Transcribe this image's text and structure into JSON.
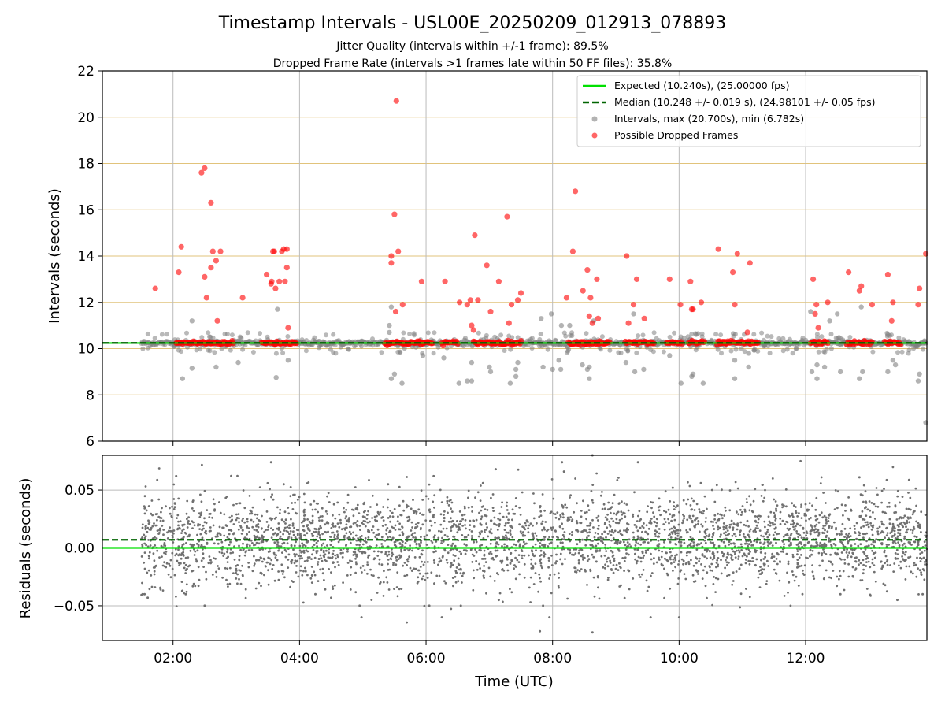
{
  "chart_data": {
    "type": "scatter",
    "title": "Timestamp Intervals - USL00E_20250209_012913_078893",
    "subtitle_lines": [
      "Jitter Quality (intervals within +/-1 frame): 89.5%",
      "Dropped Frame Rate (intervals >1 frames late within 50 FF files): 35.8%"
    ],
    "xlabel": "Time (UTC)",
    "x_unit": "hours UTC",
    "xlim": [
      0.883,
      13.917
    ],
    "xticks": [
      {
        "value": 2,
        "label": "02:00"
      },
      {
        "value": 4,
        "label": "04:00"
      },
      {
        "value": 6,
        "label": "06:00"
      },
      {
        "value": 8,
        "label": "08:00"
      },
      {
        "value": 10,
        "label": "10:00"
      },
      {
        "value": 12,
        "label": "12:00"
      }
    ],
    "top_panel": {
      "ylabel": "Intervals (seconds)",
      "ylim": [
        6,
        22
      ],
      "yticks": [
        6,
        8,
        10,
        12,
        14,
        16,
        18,
        20,
        22
      ],
      "expected_value": 10.24,
      "median_value": 10.248,
      "x_start": 1.5,
      "legend": {
        "placement": "top-right",
        "entries": [
          {
            "label": "Expected (10.240s), (25.00000 fps)",
            "color": "#00e000",
            "style": "solid"
          },
          {
            "label": "Median (10.248 +/- 0.019 s), (24.98101 +/- 0.05 fps)",
            "color": "#006400",
            "style": "dashed"
          },
          {
            "label": "Intervals, max (20.700s), min (6.782s)",
            "color": "#808080",
            "style": "marker"
          },
          {
            "label": "Possible Dropped Frames",
            "color": "#ff0000",
            "style": "marker"
          }
        ]
      },
      "dropped_frames": [
        [
          1.72,
          12.6
        ],
        [
          2.09,
          13.3
        ],
        [
          2.13,
          14.4
        ],
        [
          2.45,
          17.6
        ],
        [
          2.5,
          17.8
        ],
        [
          2.5,
          13.1
        ],
        [
          2.53,
          12.2
        ],
        [
          2.6,
          13.5
        ],
        [
          2.6,
          16.3
        ],
        [
          2.63,
          14.2
        ],
        [
          2.68,
          13.8
        ],
        [
          2.7,
          11.2
        ],
        [
          2.75,
          14.2
        ],
        [
          3.1,
          12.2
        ],
        [
          3.48,
          13.2
        ],
        [
          3.55,
          12.8
        ],
        [
          3.56,
          12.9
        ],
        [
          3.58,
          14.2
        ],
        [
          3.6,
          14.2
        ],
        [
          3.62,
          12.6
        ],
        [
          3.68,
          12.9
        ],
        [
          3.72,
          14.2
        ],
        [
          3.75,
          14.3
        ],
        [
          3.77,
          12.9
        ],
        [
          3.8,
          13.5
        ],
        [
          3.8,
          14.3
        ],
        [
          3.82,
          10.9
        ],
        [
          5.45,
          14
        ],
        [
          5.45,
          13.7
        ],
        [
          5.5,
          15.8
        ],
        [
          5.52,
          11.6
        ],
        [
          5.53,
          20.7
        ],
        [
          5.56,
          14.2
        ],
        [
          5.63,
          11.9
        ],
        [
          5.93,
          12.9
        ],
        [
          6.3,
          12.9
        ],
        [
          6.53,
          12
        ],
        [
          6.65,
          11.9
        ],
        [
          6.7,
          12.1
        ],
        [
          6.72,
          11
        ],
        [
          6.75,
          10.8
        ],
        [
          6.77,
          14.9
        ],
        [
          6.82,
          12.1
        ],
        [
          6.96,
          13.6
        ],
        [
          7.02,
          11.6
        ],
        [
          7.15,
          12.9
        ],
        [
          7.28,
          15.7
        ],
        [
          7.31,
          11.1
        ],
        [
          7.35,
          11.9
        ],
        [
          7.45,
          12.1
        ],
        [
          7.5,
          12.4
        ],
        [
          8.22,
          12.2
        ],
        [
          8.32,
          14.2
        ],
        [
          8.36,
          16.8
        ],
        [
          8.48,
          12.5
        ],
        [
          8.55,
          13.4
        ],
        [
          8.58,
          11.4
        ],
        [
          8.6,
          12.2
        ],
        [
          8.63,
          11.1
        ],
        [
          8.7,
          13
        ],
        [
          8.72,
          11.3
        ],
        [
          9.17,
          14
        ],
        [
          9.2,
          11.1
        ],
        [
          9.28,
          11.9
        ],
        [
          9.33,
          13
        ],
        [
          9.45,
          11.3
        ],
        [
          9.85,
          13
        ],
        [
          10.02,
          11.9
        ],
        [
          10.18,
          12.9
        ],
        [
          10.2,
          11.7
        ],
        [
          10.22,
          11.7
        ],
        [
          10.35,
          12
        ],
        [
          10.62,
          14.3
        ],
        [
          10.85,
          13.3
        ],
        [
          10.88,
          11.9
        ],
        [
          10.92,
          14.1
        ],
        [
          11.08,
          10.7
        ],
        [
          11.12,
          13.7
        ],
        [
          12.12,
          13
        ],
        [
          12.15,
          11.5
        ],
        [
          12.17,
          11.9
        ],
        [
          12.2,
          10.9
        ],
        [
          12.35,
          12
        ],
        [
          12.68,
          13.3
        ],
        [
          12.85,
          12.5
        ],
        [
          12.88,
          12.7
        ],
        [
          13.05,
          11.9
        ],
        [
          13.3,
          13.2
        ],
        [
          13.36,
          11.2
        ],
        [
          13.38,
          12
        ],
        [
          13.78,
          11.9
        ],
        [
          13.8,
          12.6
        ],
        [
          13.9,
          14.1
        ]
      ],
      "gray_outliers": [
        [
          2.15,
          8.7
        ],
        [
          2.3,
          9.15
        ],
        [
          2.3,
          11.2
        ],
        [
          2.68,
          9.2
        ],
        [
          3.03,
          9.4
        ],
        [
          3.06,
          10.5
        ],
        [
          3.63,
          8.75
        ],
        [
          3.65,
          11.7
        ],
        [
          3.82,
          9.5
        ],
        [
          5.42,
          11
        ],
        [
          5.42,
          10.7
        ],
        [
          5.45,
          11.8
        ],
        [
          5.45,
          8.7
        ],
        [
          5.5,
          8.9
        ],
        [
          5.62,
          8.5
        ],
        [
          5.95,
          9.7
        ],
        [
          6.28,
          9.6
        ],
        [
          6.52,
          8.5
        ],
        [
          6.65,
          8.6
        ],
        [
          6.72,
          8.6
        ],
        [
          6.72,
          9.4
        ],
        [
          7.0,
          9.2
        ],
        [
          7.02,
          9
        ],
        [
          7.33,
          8.5
        ],
        [
          7.42,
          8.8
        ],
        [
          7.42,
          9.1
        ],
        [
          7.45,
          9.4
        ],
        [
          7.82,
          11.3
        ],
        [
          7.85,
          9.2
        ],
        [
          7.98,
          11.5
        ],
        [
          8.0,
          9.1
        ],
        [
          8.1,
          9.5
        ],
        [
          8.13,
          9.1
        ],
        [
          8.14,
          11
        ],
        [
          8.27,
          11
        ],
        [
          8.47,
          9.3
        ],
        [
          8.55,
          9.1
        ],
        [
          8.58,
          8.7
        ],
        [
          8.58,
          9.2
        ],
        [
          8.65,
          11.2
        ],
        [
          9.16,
          9.4
        ],
        [
          9.28,
          11.5
        ],
        [
          9.3,
          9
        ],
        [
          9.44,
          9.1
        ],
        [
          9.85,
          9.7
        ],
        [
          10.03,
          8.5
        ],
        [
          10.2,
          8.8
        ],
        [
          10.22,
          8.9
        ],
        [
          10.38,
          8.5
        ],
        [
          10.88,
          8.7
        ],
        [
          10.88,
          9.5
        ],
        [
          11.1,
          9.2
        ],
        [
          11.1,
          9.8
        ],
        [
          12.08,
          11.6
        ],
        [
          12.1,
          9
        ],
        [
          12.18,
          8.7
        ],
        [
          12.18,
          9.3
        ],
        [
          12.3,
          9.2
        ],
        [
          12.38,
          11.2
        ],
        [
          12.5,
          11.5
        ],
        [
          12.55,
          9
        ],
        [
          12.85,
          8.7
        ],
        [
          12.88,
          11.8
        ],
        [
          12.9,
          9
        ],
        [
          13.3,
          9
        ],
        [
          13.3,
          10.6
        ],
        [
          13.38,
          9.5
        ],
        [
          13.42,
          9.3
        ],
        [
          13.78,
          8.6
        ],
        [
          13.8,
          8.9
        ],
        [
          13.9,
          6.8
        ]
      ],
      "dropped_bands": [
        [
          2.05,
          2.95
        ],
        [
          3.4,
          3.95
        ],
        [
          5.35,
          5.95
        ],
        [
          5.9,
          6.1
        ],
        [
          6.25,
          6.5
        ],
        [
          6.75,
          7.5
        ],
        [
          8.25,
          8.9
        ],
        [
          9.15,
          9.6
        ],
        [
          9.8,
          10.05
        ],
        [
          10.15,
          10.4
        ],
        [
          10.6,
          11.25
        ],
        [
          12.08,
          12.35
        ],
        [
          12.65,
          13.05
        ],
        [
          13.25,
          13.5
        ]
      ],
      "red_band_value": 10.25
    },
    "bottom_panel": {
      "ylabel": "Residuals (seconds)",
      "ylim": [
        -0.08,
        0.08
      ],
      "yticks": [
        {
          "value": 0.05,
          "label": "0.05"
        },
        {
          "value": 0.0,
          "label": "0.00"
        },
        {
          "value": -0.05,
          "label": "−0.05"
        }
      ],
      "expected_value": 0.0,
      "median_value": 0.007,
      "residual_sd": 0.019,
      "x_range": [
        1.5,
        13.917
      ],
      "n_points": 3600,
      "outliers": [
        [
          1.52,
          -0.04
        ],
        [
          1.55,
          -0.04
        ],
        [
          1.6,
          -0.043
        ],
        [
          1.8,
          -0.035
        ],
        [
          2.05,
          0.062
        ],
        [
          2.2,
          -0.04
        ],
        [
          2.5,
          -0.05
        ],
        [
          3.55,
          0.074
        ],
        [
          3.75,
          0.055
        ],
        [
          4.25,
          -0.04
        ],
        [
          4.95,
          -0.05
        ],
        [
          4.98,
          -0.06
        ],
        [
          5.4,
          0.055
        ],
        [
          6.12,
          0.062
        ],
        [
          6.05,
          -0.05
        ],
        [
          6.25,
          -0.06
        ],
        [
          6.55,
          -0.05
        ],
        [
          6.9,
          0.056
        ],
        [
          7.1,
          0.068
        ],
        [
          7.15,
          -0.045
        ],
        [
          7.95,
          -0.06
        ],
        [
          7.85,
          -0.05
        ],
        [
          7.8,
          -0.072
        ],
        [
          8.15,
          0.074
        ],
        [
          8.18,
          0.066
        ],
        [
          8.63,
          0.08
        ],
        [
          8.63,
          -0.073
        ],
        [
          9.35,
          0.074
        ],
        [
          9.55,
          -0.06
        ],
        [
          9.9,
          0.052
        ],
        [
          10.0,
          -0.06
        ],
        [
          12.55,
          -0.04
        ],
        [
          12.85,
          0.061
        ],
        [
          13.45,
          -0.045
        ],
        [
          13.85,
          -0.04
        ]
      ]
    }
  }
}
